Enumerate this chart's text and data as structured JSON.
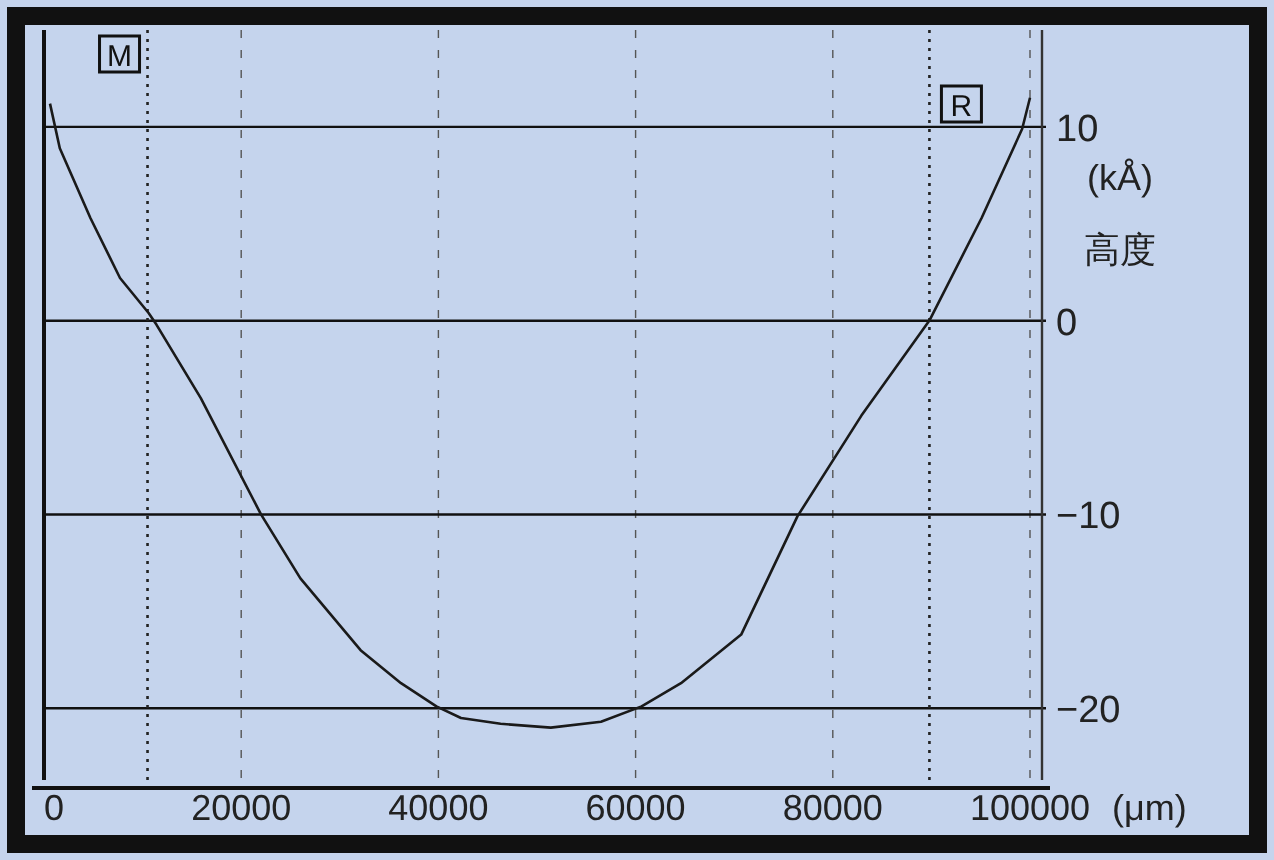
{
  "chart_data": {
    "type": "line",
    "xlabel": "(μm)",
    "ylabel": "(kÅ) 高度",
    "color": "#1a1a1a",
    "line_style": "solid",
    "marker": "none",
    "grid": true,
    "x": [
      600,
      1600,
      4700,
      7700,
      10600,
      11400,
      15900,
      22000,
      26000,
      32100,
      36200,
      39800,
      42300,
      46300,
      51400,
      56500,
      60600,
      64600,
      70700,
      76400,
      82900,
      89800,
      95100,
      99200,
      100000
    ],
    "values": [
      11.2,
      8.9,
      5.3,
      2.2,
      0.4,
      -0.2,
      -4.0,
      -10.0,
      -13.3,
      -17.0,
      -18.7,
      -19.9,
      -20.5,
      -20.8,
      -21.0,
      -20.7,
      -19.9,
      -18.7,
      -16.2,
      -10.1,
      -4.9,
      0,
      5.3,
      9.9,
      11.5
    ],
    "xlim": [
      0,
      100000
    ],
    "ylim": [
      -23.7,
      15
    ],
    "xticks": [
      0,
      20000,
      40000,
      60000,
      80000,
      100000
    ],
    "yticks": [
      -20,
      -10,
      0,
      10
    ],
    "ref_lines": [
      {
        "axis": "x",
        "value": 10500,
        "label": "M",
        "line_style": "dotted"
      },
      {
        "axis": "x",
        "value": 89800,
        "label": "R",
        "line_style": "dotted"
      }
    ]
  }
}
